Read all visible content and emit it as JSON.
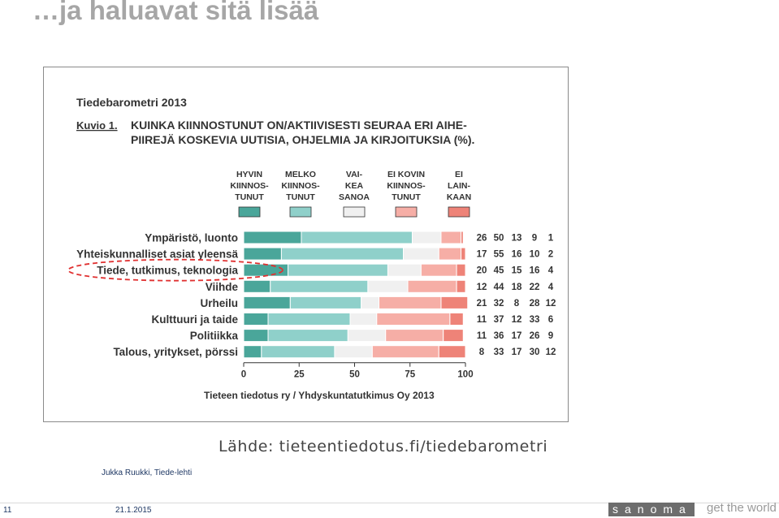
{
  "slide": {
    "title": "…ja haluavat sitä lisää",
    "source": "Lähde: tieteentiedotus.fi/tiedebarometri",
    "author": "Jukka Ruukki, Tiede-lehti",
    "page_number": "11",
    "date": "21.1.2015",
    "logo_text": "sanoma",
    "tagline": "get the world"
  },
  "chart_data": {
    "type": "bar",
    "stacked": true,
    "orientation": "horizontal",
    "title": "Tiedebarometri 2013",
    "figure_label": "Kuvio 1.",
    "subtitle_lines": [
      "KUINKA KIINNOSTUNUT ON/AKTIIVISESTI SEURAA ERI AIHE-",
      "PIIREJÄ KOSKEVIA UUTISIA, OHJELMIA JA KIRJOITUKSIA (%)."
    ],
    "categories": [
      "Ympäristö, luonto",
      "Yhteiskunnalliset asiat yleensä",
      "Tiede, tutkimus, teknologia",
      "Viihde",
      "Urheilu",
      "Kulttuuri ja taide",
      "Politiikka",
      "Talous, yritykset, pörssi"
    ],
    "highlighted_category": "Tiede, tutkimus, teknologia",
    "series": [
      {
        "legend_lines": [
          "HYVIN",
          "KIINNOS-",
          "TUNUT"
        ],
        "color": "#4aa69a",
        "values": [
          26,
          17,
          20,
          12,
          21,
          11,
          11,
          8
        ]
      },
      {
        "legend_lines": [
          "MELKO",
          "KIINNOS-",
          "TUNUT"
        ],
        "color": "#8fd0ca",
        "values": [
          50,
          55,
          45,
          44,
          32,
          37,
          36,
          33
        ]
      },
      {
        "legend_lines": [
          "VAI-",
          "KEA",
          "SANOA"
        ],
        "color": "#f0f0f0",
        "values": [
          13,
          16,
          15,
          18,
          8,
          12,
          17,
          17
        ]
      },
      {
        "legend_lines": [
          "EI KOVIN",
          "KIINNOS-",
          "TUNUT"
        ],
        "color": "#f6aea6",
        "values": [
          9,
          10,
          16,
          22,
          28,
          33,
          26,
          30
        ]
      },
      {
        "legend_lines": [
          "EI",
          "LAIN-",
          "KAAN"
        ],
        "color": "#ee8378",
        "values": [
          1,
          2,
          4,
          4,
          12,
          6,
          9,
          12
        ]
      }
    ],
    "x_ticks": [
      0,
      25,
      50,
      75,
      100
    ],
    "xlim": [
      0,
      100
    ],
    "source_note": "Tieteen tiedotus ry / Yhdyskuntatutkimus Oy 2013"
  }
}
